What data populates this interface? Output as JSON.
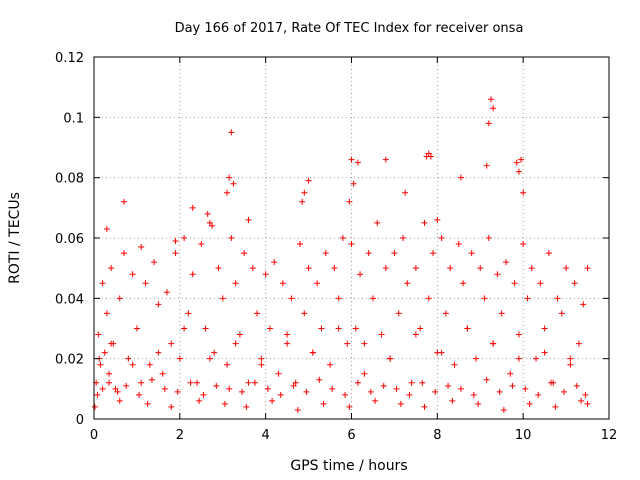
{
  "chart_data": {
    "type": "scatter",
    "title": "Day 166 of 2017, Rate Of TEC Index for receiver onsa",
    "xlabel": "GPS time / hours",
    "ylabel": "ROTI / TECUs",
    "xlim": [
      0,
      12
    ],
    "ylim": [
      0,
      0.12
    ],
    "x_ticks": [
      0,
      2,
      4,
      6,
      8,
      10,
      12
    ],
    "x_tick_labels": [
      "0",
      "2",
      "4",
      "6",
      "8",
      "10",
      "12"
    ],
    "y_ticks": [
      0,
      0.02,
      0.04,
      0.06,
      0.08,
      0.1,
      0.12
    ],
    "y_tick_labels": [
      "0",
      "0.02",
      "0.04",
      "0.06",
      "0.08",
      "0.1",
      "0.12"
    ],
    "grid": true,
    "marker": "+",
    "color": "#ff0000",
    "series": [
      {
        "x": [
          0.05,
          0.1,
          0.15,
          0.2,
          0.25,
          0.3,
          0.35,
          0.4,
          0.45,
          0.5,
          0.6,
          0.7,
          0.8,
          0.9,
          1.0,
          1.1,
          1.2,
          1.3,
          1.4,
          1.5,
          1.6,
          1.7,
          1.8,
          1.9,
          2.0,
          2.1,
          2.2,
          2.3,
          2.4,
          2.5,
          2.6,
          2.7,
          2.8,
          2.9,
          3.0,
          3.1,
          3.2,
          3.3,
          3.4,
          3.5,
          3.6,
          3.7,
          3.8,
          3.9,
          4.0,
          4.1,
          4.2,
          4.3,
          4.4,
          4.5,
          4.6,
          4.7,
          4.8,
          4.9,
          5.0,
          5.1,
          5.2,
          5.3,
          5.4,
          5.5,
          5.6,
          5.7,
          5.8,
          5.9,
          6.0,
          6.1,
          6.2,
          6.3,
          6.4,
          6.5,
          6.6,
          6.7,
          6.8,
          6.9,
          7.0,
          7.1,
          7.2,
          7.3,
          7.4,
          7.5,
          7.6,
          7.7,
          7.8,
          7.9,
          8.0,
          8.1,
          8.2,
          8.3,
          8.4,
          8.5,
          8.6,
          8.7,
          8.8,
          8.9,
          9.0,
          9.1,
          9.2,
          9.3,
          9.4,
          9.5,
          9.6,
          9.7,
          9.8,
          9.9,
          10.0,
          10.1,
          10.2,
          10.3,
          10.4,
          10.5,
          10.6,
          10.7,
          10.8,
          10.9,
          11.0,
          11.1,
          11.2,
          11.3,
          11.4,
          11.5,
          0.08,
          0.2,
          0.35,
          0.55,
          0.75,
          1.05,
          1.35,
          1.65,
          1.95,
          2.25,
          2.55,
          2.85,
          3.15,
          3.45,
          3.75,
          4.05,
          4.35,
          4.65,
          4.95,
          5.25,
          5.55,
          5.85,
          6.15,
          6.45,
          6.75,
          7.05,
          7.35,
          7.65,
          7.95,
          8.25,
          8.55,
          8.85,
          9.15,
          9.45,
          9.75,
          10.05,
          10.35,
          10.65,
          10.95,
          11.25,
          11.45,
          0.12,
          0.4,
          0.9,
          1.5,
          2.1,
          2.7,
          3.3,
          3.9,
          4.5,
          5.1,
          5.7,
          6.3,
          6.9,
          7.5,
          8.1,
          8.7,
          9.3,
          9.9,
          10.5,
          11.1,
          0.3,
          0.7,
          1.1,
          1.9,
          2.3,
          2.65,
          2.75,
          3.1,
          3.15,
          3.2,
          3.25,
          3.6,
          4.85,
          4.9,
          5.0,
          5.95,
          6.0,
          6.05,
          6.15,
          6.8,
          7.25,
          7.75,
          7.8,
          7.85,
          8.0,
          8.55,
          9.15,
          9.2,
          9.25,
          9.3,
          9.85,
          9.9,
          9.95,
          10.0,
          0.02,
          0.6,
          1.25,
          1.8,
          2.45,
          3.05,
          3.55,
          4.15,
          4.75,
          5.35,
          5.95,
          6.55,
          7.15,
          7.7,
          8.35,
          8.95,
          9.55,
          10.15,
          10.75,
          11.35,
          11.5
        ],
        "y": [
          0.012,
          0.028,
          0.018,
          0.045,
          0.022,
          0.035,
          0.015,
          0.05,
          0.025,
          0.01,
          0.04,
          0.055,
          0.02,
          0.048,
          0.03,
          0.012,
          0.045,
          0.018,
          0.052,
          0.038,
          0.015,
          0.042,
          0.025,
          0.055,
          0.02,
          0.06,
          0.035,
          0.048,
          0.012,
          0.058,
          0.03,
          0.065,
          0.022,
          0.05,
          0.04,
          0.018,
          0.06,
          0.045,
          0.028,
          0.055,
          0.012,
          0.05,
          0.035,
          0.02,
          0.048,
          0.03,
          0.052,
          0.015,
          0.045,
          0.025,
          0.04,
          0.012,
          0.058,
          0.035,
          0.05,
          0.022,
          0.045,
          0.03,
          0.055,
          0.018,
          0.05,
          0.04,
          0.06,
          0.025,
          0.058,
          0.03,
          0.048,
          0.015,
          0.055,
          0.04,
          0.065,
          0.028,
          0.05,
          0.02,
          0.055,
          0.035,
          0.06,
          0.045,
          0.012,
          0.05,
          0.03,
          0.065,
          0.04,
          0.055,
          0.022,
          0.06,
          0.035,
          0.05,
          0.018,
          0.058,
          0.045,
          0.03,
          0.055,
          0.02,
          0.05,
          0.04,
          0.06,
          0.025,
          0.048,
          0.035,
          0.052,
          0.015,
          0.045,
          0.028,
          0.058,
          0.04,
          0.05,
          0.02,
          0.045,
          0.03,
          0.055,
          0.012,
          0.04,
          0.035,
          0.05,
          0.02,
          0.045,
          0.025,
          0.038,
          0.05,
          0.008,
          0.01,
          0.012,
          0.009,
          0.011,
          0.008,
          0.013,
          0.01,
          0.009,
          0.012,
          0.008,
          0.011,
          0.01,
          0.009,
          0.012,
          0.01,
          0.008,
          0.011,
          0.009,
          0.013,
          0.01,
          0.008,
          0.012,
          0.009,
          0.011,
          0.01,
          0.008,
          0.012,
          0.009,
          0.011,
          0.01,
          0.008,
          0.013,
          0.009,
          0.011,
          0.01,
          0.008,
          0.012,
          0.009,
          0.011,
          0.008,
          0.02,
          0.025,
          0.018,
          0.022,
          0.03,
          0.02,
          0.025,
          0.018,
          0.028,
          0.022,
          0.03,
          0.025,
          0.02,
          0.028,
          0.022,
          0.03,
          0.025,
          0.02,
          0.022,
          0.018,
          0.063,
          0.072,
          0.057,
          0.059,
          0.07,
          0.068,
          0.064,
          0.075,
          0.08,
          0.095,
          0.078,
          0.066,
          0.072,
          0.075,
          0.079,
          0.072,
          0.086,
          0.078,
          0.085,
          0.086,
          0.075,
          0.087,
          0.088,
          0.087,
          0.066,
          0.08,
          0.084,
          0.098,
          0.106,
          0.103,
          0.085,
          0.082,
          0.086,
          0.075,
          0.004,
          0.006,
          0.005,
          0.004,
          0.006,
          0.005,
          0.004,
          0.006,
          0.003,
          0.005,
          0.004,
          0.006,
          0.005,
          0.004,
          0.006,
          0.005,
          0.003,
          0.005,
          0.004,
          0.006,
          0.005
        ]
      }
    ]
  }
}
